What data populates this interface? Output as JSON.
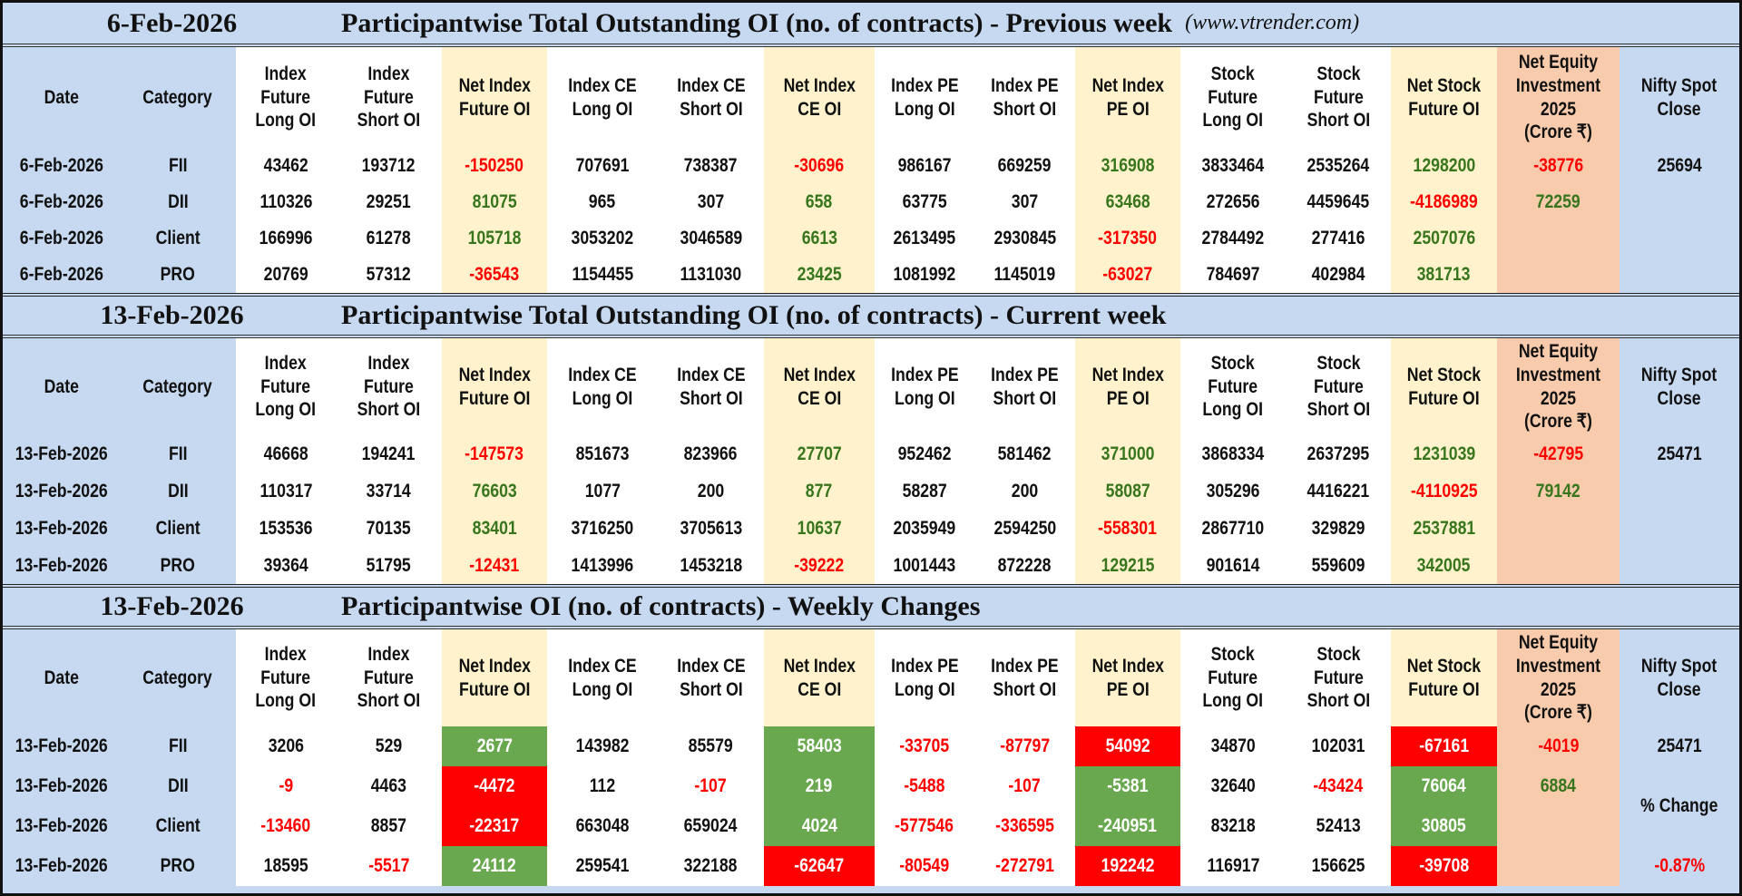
{
  "website": "(www.vtrender.com)",
  "colors": {
    "header_blue": "#c6d9f1",
    "net_column": "#fff2cc",
    "equity_column": "#f8cbad",
    "positive_text": "#38761d",
    "negative_text": "#ff0000",
    "positive_fill": "#6aa84f",
    "negative_fill": "#ff0000"
  },
  "columns": [
    "Date",
    "Category",
    "Index\nFuture\nLong OI",
    "Index\nFuture\nShort OI",
    "Net Index\nFuture OI",
    "Index CE\nLong OI",
    "Index CE\nShort OI",
    "Net Index\nCE OI",
    "Index PE\nLong OI",
    "Index PE\nShort OI",
    "Net Index\nPE OI",
    "Stock\nFuture\nLong OI",
    "Stock\nFuture\nShort OI",
    "Net Stock\nFuture OI",
    "Net Equity\nInvestment\n2025\n(Crore ₹)",
    "Nifty Spot\nClose"
  ],
  "sections": [
    {
      "date": "6-Feb-2026",
      "title": "Participantwise Total Outstanding OI (no. of contracts) - Previous week",
      "rows": [
        {
          "date": "6-Feb-2026",
          "category": "FII",
          "values": [
            "43462",
            "193712",
            "-150250",
            "707691",
            "738387",
            "-30696",
            "986167",
            "669259",
            "316908",
            "3833464",
            "2535264",
            "1298200",
            "-38776",
            "25694"
          ],
          "tones": [
            "n",
            "n",
            "r",
            "n",
            "n",
            "r",
            "n",
            "n",
            "g",
            "n",
            "n",
            "g",
            "r",
            "n"
          ]
        },
        {
          "date": "6-Feb-2026",
          "category": "DII",
          "values": [
            "110326",
            "29251",
            "81075",
            "965",
            "307",
            "658",
            "63775",
            "307",
            "63468",
            "272656",
            "4459645",
            "-4186989",
            "72259",
            ""
          ],
          "tones": [
            "n",
            "n",
            "g",
            "n",
            "n",
            "g",
            "n",
            "n",
            "g",
            "n",
            "n",
            "r",
            "g",
            "n"
          ]
        },
        {
          "date": "6-Feb-2026",
          "category": "Client",
          "values": [
            "166996",
            "61278",
            "105718",
            "3053202",
            "3046589",
            "6613",
            "2613495",
            "2930845",
            "-317350",
            "2784492",
            "277416",
            "2507076",
            "",
            ""
          ],
          "tones": [
            "n",
            "n",
            "g",
            "n",
            "n",
            "g",
            "n",
            "n",
            "r",
            "n",
            "n",
            "g",
            "n",
            "n"
          ]
        },
        {
          "date": "6-Feb-2026",
          "category": "PRO",
          "values": [
            "20769",
            "57312",
            "-36543",
            "1154455",
            "1131030",
            "23425",
            "1081992",
            "1145019",
            "-63027",
            "784697",
            "402984",
            "381713",
            "",
            ""
          ],
          "tones": [
            "n",
            "n",
            "r",
            "n",
            "n",
            "g",
            "n",
            "n",
            "r",
            "n",
            "n",
            "g",
            "n",
            "n"
          ]
        }
      ]
    },
    {
      "date": "13-Feb-2026",
      "title": "Participantwise Total Outstanding OI (no. of contracts) - Current week",
      "rows": [
        {
          "date": "13-Feb-2026",
          "category": "FII",
          "values": [
            "46668",
            "194241",
            "-147573",
            "851673",
            "823966",
            "27707",
            "952462",
            "581462",
            "371000",
            "3868334",
            "2637295",
            "1231039",
            "-42795",
            "25471"
          ],
          "tones": [
            "n",
            "n",
            "r",
            "n",
            "n",
            "g",
            "n",
            "n",
            "g",
            "n",
            "n",
            "g",
            "r",
            "n"
          ]
        },
        {
          "date": "13-Feb-2026",
          "category": "DII",
          "values": [
            "110317",
            "33714",
            "76603",
            "1077",
            "200",
            "877",
            "58287",
            "200",
            "58087",
            "305296",
            "4416221",
            "-4110925",
            "79142",
            ""
          ],
          "tones": [
            "n",
            "n",
            "g",
            "n",
            "n",
            "g",
            "n",
            "n",
            "g",
            "n",
            "n",
            "r",
            "g",
            "n"
          ]
        },
        {
          "date": "13-Feb-2026",
          "category": "Client",
          "values": [
            "153536",
            "70135",
            "83401",
            "3716250",
            "3705613",
            "10637",
            "2035949",
            "2594250",
            "-558301",
            "2867710",
            "329829",
            "2537881",
            "",
            ""
          ],
          "tones": [
            "n",
            "n",
            "g",
            "n",
            "n",
            "g",
            "n",
            "n",
            "r",
            "n",
            "n",
            "g",
            "n",
            "n"
          ]
        },
        {
          "date": "13-Feb-2026",
          "category": "PRO",
          "values": [
            "39364",
            "51795",
            "-12431",
            "1413996",
            "1453218",
            "-39222",
            "1001443",
            "872228",
            "129215",
            "901614",
            "559609",
            "342005",
            "",
            ""
          ],
          "tones": [
            "n",
            "n",
            "r",
            "n",
            "n",
            "r",
            "n",
            "n",
            "g",
            "n",
            "n",
            "g",
            "n",
            "n"
          ]
        }
      ]
    },
    {
      "date": "13-Feb-2026",
      "title": "Participantwise OI (no. of contracts) - Weekly Changes",
      "rows": [
        {
          "date": "13-Feb-2026",
          "category": "FII",
          "values": [
            "3206",
            "529",
            "2677",
            "143982",
            "85579",
            "58403",
            "-33705",
            "-87797",
            "54092",
            "34870",
            "102031",
            "-67161",
            "-4019",
            "25471"
          ],
          "tones": [
            "n",
            "n",
            "G",
            "n",
            "n",
            "G",
            "r",
            "r",
            "R",
            "n",
            "n",
            "R",
            "r",
            "n"
          ]
        },
        {
          "date": "13-Feb-2026",
          "category": "DII",
          "values": [
            "-9",
            "4463",
            "-4472",
            "112",
            "-107",
            "219",
            "-5488",
            "-107",
            "-5381",
            "32640",
            "-43424",
            "76064",
            "6884",
            ""
          ],
          "tones": [
            "r",
            "n",
            "R",
            "n",
            "r",
            "G",
            "r",
            "r",
            "G",
            "n",
            "r",
            "G",
            "g",
            "n"
          ]
        },
        {
          "date": "13-Feb-2026",
          "category": "Client",
          "values": [
            "-13460",
            "8857",
            "-22317",
            "663048",
            "659024",
            "4024",
            "-577546",
            "-336595",
            "-240951",
            "83218",
            "52413",
            "30805",
            "",
            "% Change"
          ],
          "tones": [
            "r",
            "n",
            "R",
            "n",
            "n",
            "G",
            "r",
            "r",
            "G",
            "n",
            "n",
            "G",
            "n",
            "L"
          ]
        },
        {
          "date": "13-Feb-2026",
          "category": "PRO",
          "values": [
            "18595",
            "-5517",
            "24112",
            "259541",
            "322188",
            "-62647",
            "-80549",
            "-272791",
            "192242",
            "116917",
            "156625",
            "-39708",
            "",
            "-0.87%"
          ],
          "tones": [
            "n",
            "r",
            "G",
            "n",
            "n",
            "R",
            "r",
            "r",
            "R",
            "n",
            "n",
            "R",
            "n",
            "r"
          ]
        }
      ]
    }
  ]
}
